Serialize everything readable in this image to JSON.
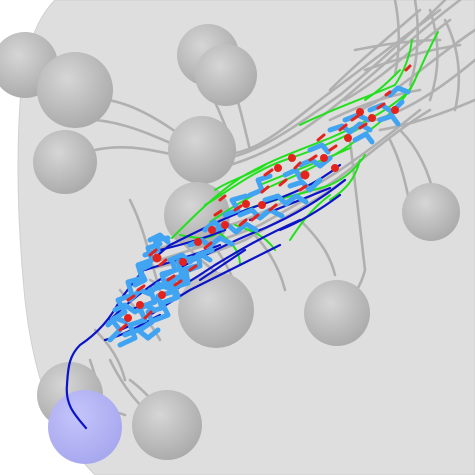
{
  "scene": {
    "background_color": "#ffffff",
    "volume_color": "#dedede",
    "soma_color": "#bdbdbd",
    "highlight_soma_color": "#b3b3f5",
    "gray_neurite_color": "#a8a8a8",
    "colors": {
      "axon": "#0b14c8",
      "dendrite": "#41a4f2",
      "primary": "#22e11c",
      "synapse": "#e3231c"
    }
  }
}
